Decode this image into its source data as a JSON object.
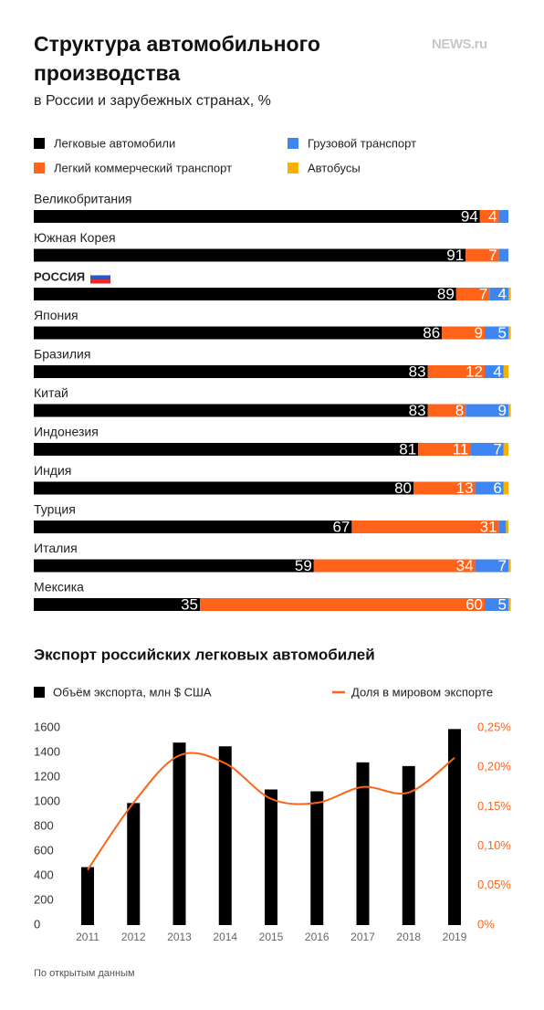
{
  "logo": "NEWS.ru",
  "source": "По открытым данным",
  "chart_data": [
    {
      "type": "stacked-bar-horizontal",
      "title": "Структура автомобильного производства",
      "subtitle": "в России и зарубежных странах, %",
      "categories": [
        "Великобритания",
        "Южная Корея",
        "РОССИЯ",
        "Япония",
        "Бразилия",
        "Китай",
        "Индонезия",
        "Индия",
        "Турция",
        "Италия",
        "Мексика"
      ],
      "xlim": [
        0,
        100
      ],
      "series": [
        {
          "name": "Легковые автомобили",
          "color": "#000000",
          "values": [
            94,
            91,
            89,
            86,
            83,
            83,
            81,
            80,
            67,
            59,
            35
          ]
        },
        {
          "name": "Легкий коммерческий транспорт",
          "color": "#ff6319",
          "values": [
            4,
            7,
            7,
            9,
            12,
            8,
            11,
            13,
            31,
            34,
            60
          ]
        },
        {
          "name": "Грузовой транспорт",
          "color": "#3f86f0",
          "values": [
            2,
            2,
            4,
            5,
            4,
            9,
            7,
            6,
            1.5,
            7,
            5
          ]
        },
        {
          "name": "Автобусы",
          "color": "#f5b000",
          "values": [
            0,
            0,
            0.5,
            0.5,
            1,
            0.5,
            1,
            1,
            0.5,
            0.5,
            0.5
          ]
        }
      ]
    },
    {
      "type": "bar-line",
      "title": "Экспорт российских легковых автомобилей",
      "categories": [
        "2011",
        "2012",
        "2013",
        "2014",
        "2015",
        "2016",
        "2017",
        "2018",
        "2019"
      ],
      "ylim": [
        0,
        1600
      ],
      "yticks": [
        0,
        200,
        400,
        600,
        800,
        1000,
        1200,
        1400,
        1600
      ],
      "y2lim": [
        0,
        0.25
      ],
      "y2ticks": [
        {
          "value": 0,
          "label": "0%"
        },
        {
          "value": 0.05,
          "label": "0,05%"
        },
        {
          "value": 0.1,
          "label": "0,10%"
        },
        {
          "value": 0.15,
          "label": "0,15%"
        },
        {
          "value": 0.2,
          "label": "0,20%"
        },
        {
          "value": 0.25,
          "label": "0,25%"
        }
      ],
      "series": [
        {
          "name": "Объём экспорта, млн $ США",
          "color": "#000000",
          "values": [
            470,
            990,
            1480,
            1450,
            1100,
            1085,
            1320,
            1290,
            1590
          ]
        },
        {
          "name": "Доля в мировом экспорте",
          "color": "#ff6319",
          "axis": "y2",
          "values": [
            0.07,
            0.155,
            0.215,
            0.205,
            0.16,
            0.155,
            0.175,
            0.168,
            0.212
          ]
        }
      ]
    }
  ]
}
